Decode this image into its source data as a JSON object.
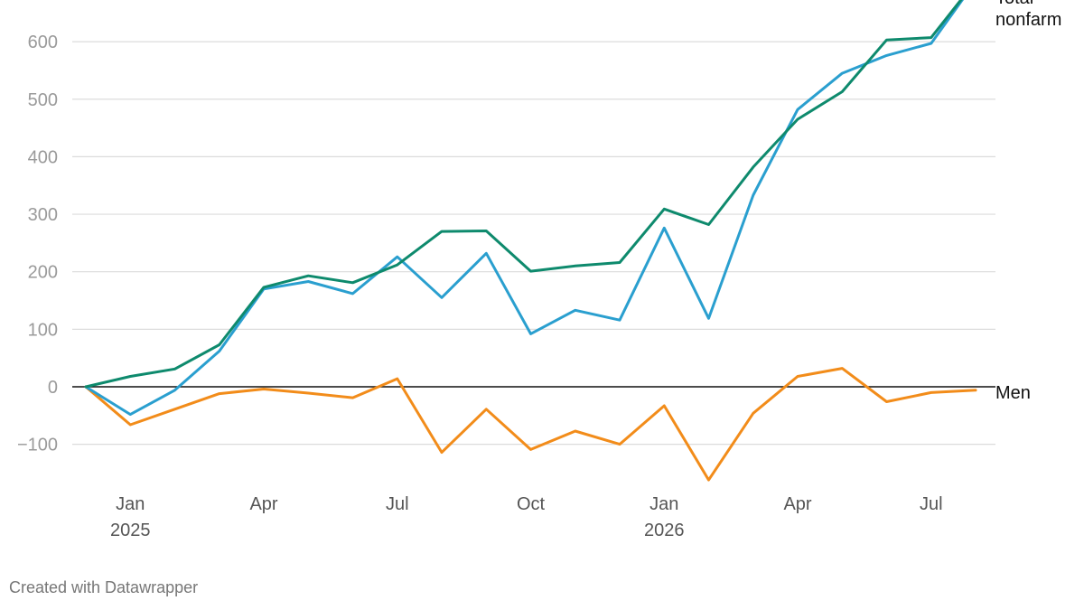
{
  "chart_data": {
    "type": "line",
    "x": [
      "Dec 2024",
      "Jan 2025",
      "Feb 2025",
      "Mar 2025",
      "Apr 2025",
      "May 2025",
      "Jun 2025",
      "Jul 2025",
      "Aug 2025",
      "Sep 2025",
      "Oct 2025",
      "Nov 2025",
      "Dec 2025",
      "Jan 2026",
      "Feb 2026",
      "Mar 2026",
      "Apr 2026",
      "May 2026",
      "Jun 2026",
      "Jul 2026",
      "Aug 2026"
    ],
    "x_tick_labels": [
      {
        "month": "Jan",
        "year": "2025",
        "x": "Jan 2025"
      },
      {
        "month": "Apr",
        "year": "",
        "x": "Apr 2025"
      },
      {
        "month": "Jul",
        "year": "",
        "x": "Jul 2025"
      },
      {
        "month": "Oct",
        "year": "",
        "x": "Oct 2025"
      },
      {
        "month": "Jan",
        "year": "2026",
        "x": "Jan 2026"
      },
      {
        "month": "Apr",
        "year": "",
        "x": "Apr 2026"
      },
      {
        "month": "Jul",
        "year": "",
        "x": "Jul 2026"
      }
    ],
    "y_ticks": [
      {
        "value": 600,
        "label": "600"
      },
      {
        "value": 500,
        "label": "500"
      },
      {
        "value": 400,
        "label": "400"
      },
      {
        "value": 300,
        "label": "300"
      },
      {
        "value": 200,
        "label": "200"
      },
      {
        "value": 100,
        "label": "100"
      },
      {
        "value": 0,
        "label": "0"
      },
      {
        "value": -100,
        "label": "−100"
      }
    ],
    "ylim": [
      -165,
      670
    ],
    "grid": true,
    "series": [
      {
        "name": "Total nonfarm",
        "label_lines": [
          "Total",
          "nonfarm"
        ],
        "color": "#0e8a6d",
        "values": [
          0,
          18,
          31,
          73,
          173,
          193,
          181,
          212,
          270,
          271,
          201,
          210,
          216,
          309,
          282,
          382,
          465,
          513,
          603,
          607,
          705
        ]
      },
      {
        "name": "",
        "color": "#2a9fcf",
        "values": [
          0,
          -48,
          -6,
          62,
          170,
          183,
          162,
          226,
          155,
          232,
          92,
          133,
          116,
          276,
          119,
          333,
          482,
          545,
          576,
          597,
          705
        ]
      },
      {
        "name": "Men",
        "label_lines": [
          "Men"
        ],
        "color": "#f28c1a",
        "values": [
          0,
          -66,
          -39,
          -12,
          -4,
          -11,
          -19,
          14,
          -114,
          -39,
          -109,
          -77,
          -100,
          -33,
          -162,
          -46,
          18,
          32,
          -26,
          -10,
          -6
        ]
      }
    ]
  },
  "footer": {
    "credit": "Created with Datawrapper"
  }
}
